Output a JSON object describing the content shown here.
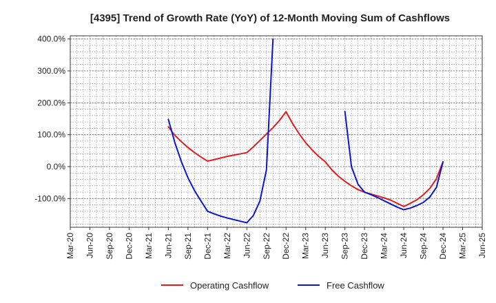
{
  "chart_data": {
    "type": "line",
    "title": "[4395]  Trend of Growth Rate (YoY) of 12-Month Moving Sum of Cashflows",
    "xlabel": "",
    "ylabel": "",
    "ylim": [
      -190,
      410
    ],
    "yticks": [
      400,
      300,
      200,
      100,
      0,
      -100
    ],
    "ytick_labels": [
      "400.0%",
      "300.0%",
      "200.0%",
      "100.0%",
      "0.0%",
      "-100.0%"
    ],
    "x_months": [
      "2020-03",
      "2020-04",
      "2020-05",
      "2020-06",
      "2020-07",
      "2020-08",
      "2020-09",
      "2020-10",
      "2020-11",
      "2020-12",
      "2021-01",
      "2021-02",
      "2021-03",
      "2021-04",
      "2021-05",
      "2021-06",
      "2021-07",
      "2021-08",
      "2021-09",
      "2021-10",
      "2021-11",
      "2021-12",
      "2022-01",
      "2022-02",
      "2022-03",
      "2022-04",
      "2022-05",
      "2022-06",
      "2022-07",
      "2022-08",
      "2022-09",
      "2022-10",
      "2022-11",
      "2022-12",
      "2023-01",
      "2023-02",
      "2023-03",
      "2023-04",
      "2023-05",
      "2023-06",
      "2023-07",
      "2023-08",
      "2023-09",
      "2023-10",
      "2023-11",
      "2023-12",
      "2024-01",
      "2024-02",
      "2024-03",
      "2024-04",
      "2024-05",
      "2024-06",
      "2024-07",
      "2024-08",
      "2024-09",
      "2024-10",
      "2024-11",
      "2024-12",
      "2025-01",
      "2025-02",
      "2025-03",
      "2025-04",
      "2025-05",
      "2025-06"
    ],
    "x_tick_labels": [
      "Mar-20",
      "Jun-20",
      "Sep-20",
      "Dec-20",
      "Mar-21",
      "Jun-21",
      "Sep-21",
      "Dec-21",
      "Mar-22",
      "Jun-22",
      "Sep-22",
      "Dec-22",
      "Mar-23",
      "Jun-23",
      "Sep-23",
      "Dec-23",
      "Mar-24",
      "Jun-24",
      "Sep-24",
      "Dec-24",
      "Mar-25",
      "Jun-25"
    ],
    "grid": true,
    "legend_position": "bottom-center",
    "series": [
      {
        "name": "Operating Cashflow",
        "color": "#e31a1c",
        "points": [
          [
            "2021-06",
            125
          ],
          [
            "2021-07",
            98
          ],
          [
            "2021-08",
            78
          ],
          [
            "2021-09",
            60
          ],
          [
            "2021-10",
            44
          ],
          [
            "2021-11",
            30
          ],
          [
            "2021-12",
            17
          ],
          [
            "2022-01",
            22
          ],
          [
            "2022-02",
            27
          ],
          [
            "2022-03",
            32
          ],
          [
            "2022-04",
            36
          ],
          [
            "2022-05",
            40
          ],
          [
            "2022-06",
            44
          ],
          [
            "2022-07",
            62
          ],
          [
            "2022-08",
            82
          ],
          [
            "2022-09",
            102
          ],
          [
            "2022-10",
            122
          ],
          [
            "2022-11",
            145
          ],
          [
            "2022-12",
            172
          ],
          [
            "2023-01",
            135
          ],
          [
            "2023-02",
            103
          ],
          [
            "2023-03",
            75
          ],
          [
            "2023-04",
            52
          ],
          [
            "2023-05",
            32
          ],
          [
            "2023-06",
            15
          ],
          [
            "2023-07",
            -10
          ],
          [
            "2023-08",
            -30
          ],
          [
            "2023-09",
            -46
          ],
          [
            "2023-10",
            -60
          ],
          [
            "2023-11",
            -72
          ],
          [
            "2023-12",
            -80
          ],
          [
            "2024-01",
            -86
          ],
          [
            "2024-02",
            -92
          ],
          [
            "2024-03",
            -98
          ],
          [
            "2024-04",
            -105
          ],
          [
            "2024-05",
            -115
          ],
          [
            "2024-06",
            -125
          ],
          [
            "2024-07",
            -115
          ],
          [
            "2024-08",
            -104
          ],
          [
            "2024-09",
            -88
          ],
          [
            "2024-10",
            -68
          ],
          [
            "2024-11",
            -38
          ],
          [
            "2024-12",
            15
          ]
        ]
      },
      {
        "name": "Free Cashflow",
        "color": "#0a14d6",
        "segments": [
          [
            [
              "2021-06",
              148
            ],
            [
              "2021-07",
              75
            ],
            [
              "2021-08",
              15
            ],
            [
              "2021-09",
              -35
            ],
            [
              "2021-10",
              -75
            ],
            [
              "2021-11",
              -108
            ],
            [
              "2021-12",
              -140
            ],
            [
              "2022-01",
              -148
            ],
            [
              "2022-02",
              -155
            ],
            [
              "2022-03",
              -161
            ],
            [
              "2022-04",
              -166
            ],
            [
              "2022-05",
              -171
            ],
            [
              "2022-06",
              -176
            ],
            [
              "2022-07",
              -153
            ],
            [
              "2022-08",
              -108
            ],
            [
              "2022-09",
              -10
            ],
            [
              "2022-10",
              400
            ]
          ],
          [
            [
              "2023-09",
              173
            ],
            [
              "2023-10",
              0
            ],
            [
              "2023-11",
              -55
            ],
            [
              "2023-12",
              -80
            ],
            [
              "2024-01",
              -88
            ],
            [
              "2024-02",
              -97
            ],
            [
              "2024-03",
              -107
            ],
            [
              "2024-04",
              -117
            ],
            [
              "2024-05",
              -127
            ],
            [
              "2024-06",
              -135
            ],
            [
              "2024-07",
              -130
            ],
            [
              "2024-08",
              -122
            ],
            [
              "2024-09",
              -112
            ],
            [
              "2024-10",
              -95
            ],
            [
              "2024-11",
              -65
            ],
            [
              "2024-12",
              15
            ]
          ]
        ]
      }
    ]
  }
}
